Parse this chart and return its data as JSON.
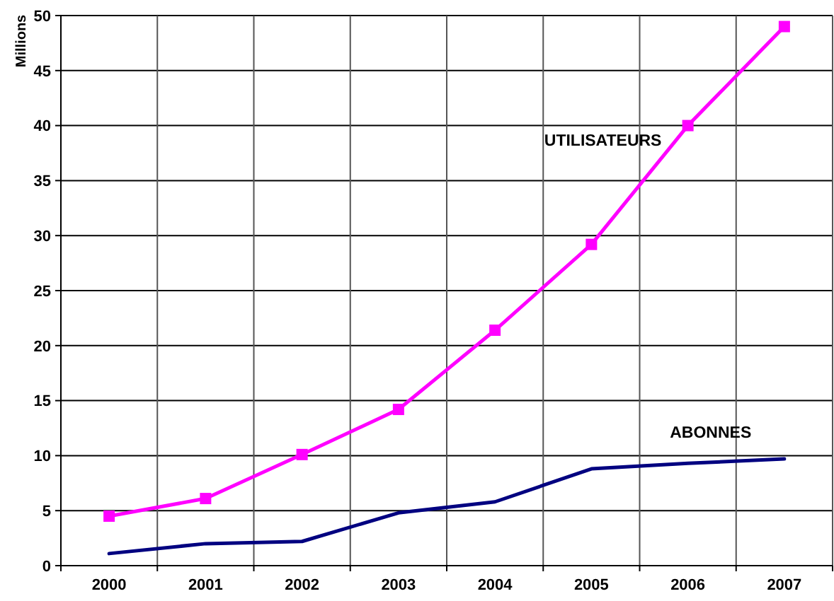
{
  "chart_data": {
    "type": "line",
    "ylabel": "Millions",
    "categories": [
      "2000",
      "2001",
      "2002",
      "2003",
      "2004",
      "2005",
      "2006",
      "2007"
    ],
    "series": [
      {
        "name": "UTILISATEURS",
        "color": "#ff00ff",
        "marker": "square",
        "values": [
          4.5,
          6.1,
          10.1,
          14.2,
          21.4,
          29.2,
          40.0,
          49.0
        ]
      },
      {
        "name": "ABONNES",
        "color": "#000080",
        "marker": "none",
        "values": [
          1.1,
          2.0,
          2.2,
          4.8,
          5.8,
          8.8,
          9.3,
          9.7
        ]
      }
    ],
    "ylim": [
      0,
      50
    ],
    "yticks": [
      0,
      5,
      10,
      15,
      20,
      25,
      30,
      35,
      40,
      45,
      50
    ],
    "grid": true,
    "legend": false
  }
}
